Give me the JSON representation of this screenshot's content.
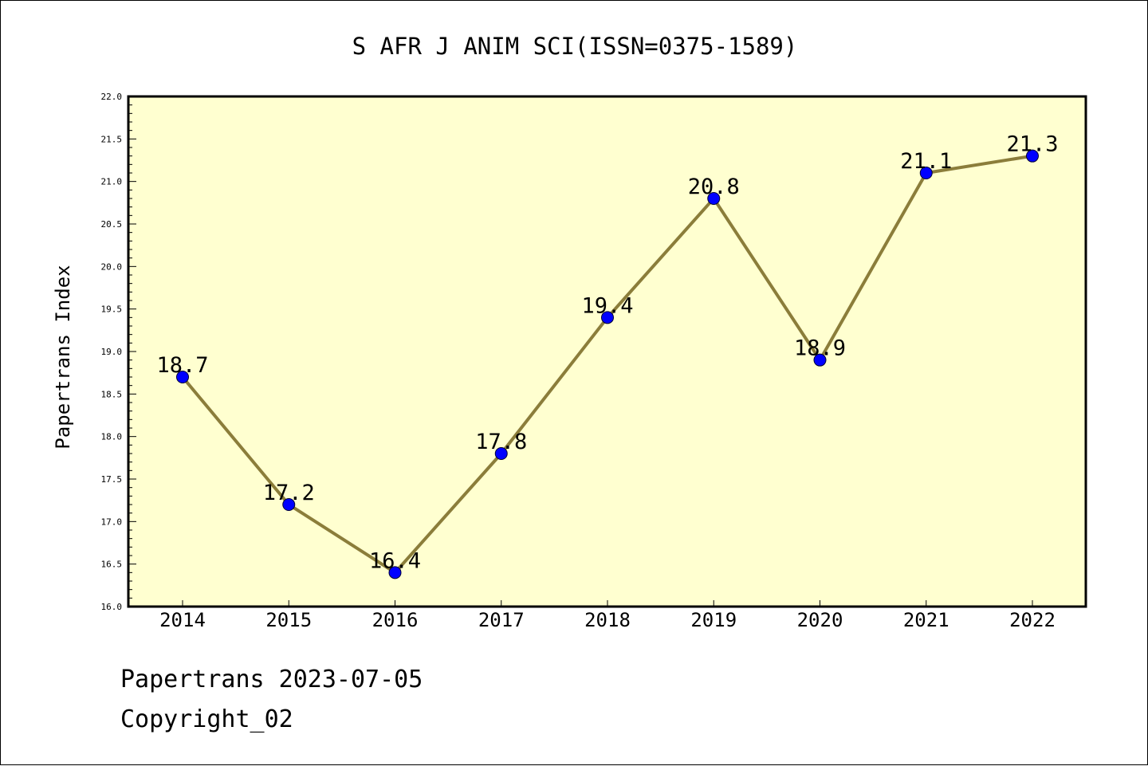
{
  "chart_data": {
    "type": "line",
    "title": "S AFR J ANIM SCI(ISSN=0375-1589)",
    "xlabel": "",
    "ylabel": "Papertrans Index",
    "categories": [
      "2014",
      "2015",
      "2016",
      "2017",
      "2018",
      "2019",
      "2020",
      "2021",
      "2022"
    ],
    "series": [
      {
        "values": [
          18.7,
          17.2,
          16.4,
          17.8,
          19.4,
          20.8,
          18.9,
          21.1,
          21.3
        ]
      }
    ],
    "data_labels": [
      "18.7",
      "17.2",
      "16.4",
      "17.8",
      "19.4",
      "20.8",
      "18.9",
      "21.1",
      "21.3"
    ],
    "ylim": [
      16.0,
      22.0
    ],
    "yticks": [
      "16.0",
      "16.5",
      "17.0",
      "17.5",
      "18.0",
      "18.5",
      "19.0",
      "19.5",
      "20.0",
      "20.5",
      "21.0",
      "21.5",
      "22.0"
    ],
    "grid": false,
    "legend": "none",
    "colors": {
      "line": "#8B7D3A",
      "marker": "#0000FF",
      "plot_background": "#FFFFD0"
    }
  },
  "footer": {
    "date_line": "Papertrans 2023-07-05",
    "copyright": "Copyright_02"
  }
}
